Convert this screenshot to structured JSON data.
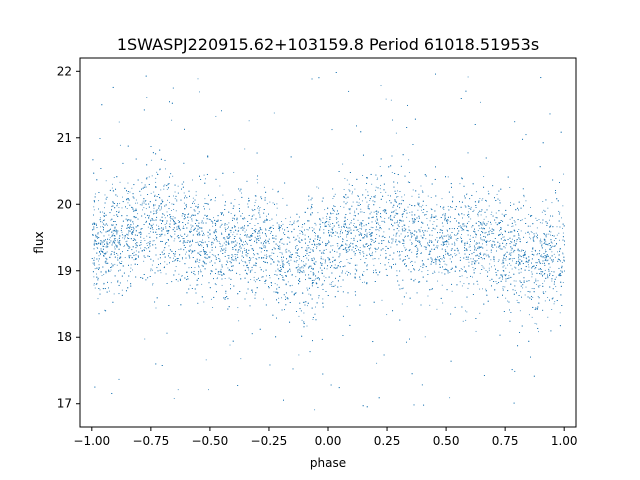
{
  "chart_data": {
    "type": "scatter",
    "title": "1SWASPJ220915.62+103159.8 Period 61018.51953s",
    "xlabel": "phase",
    "ylabel": "flux",
    "xlim": [
      -1.05,
      1.05
    ],
    "ylim": [
      16.65,
      22.2
    ],
    "xticks": [
      -1.0,
      -0.75,
      -0.5,
      -0.25,
      0.0,
      0.25,
      0.5,
      0.75,
      1.0
    ],
    "xtick_labels": [
      "−1.00",
      "−0.75",
      "−0.50",
      "−0.25",
      "0.00",
      "0.25",
      "0.50",
      "0.75",
      "1.00"
    ],
    "yticks": [
      17,
      18,
      19,
      20,
      21,
      22
    ],
    "ytick_labels": [
      "17",
      "18",
      "19",
      "20",
      "21",
      "22"
    ],
    "grid": false,
    "legend": "none",
    "marker_color": "#1f77b4",
    "series": [
      {
        "x": [
          -1.0,
          -0.95,
          -0.9,
          -0.85,
          -0.8,
          -0.75,
          -0.7,
          -0.65,
          -0.6,
          -0.55,
          -0.5,
          -0.45,
          -0.4,
          -0.35,
          -0.3,
          -0.25,
          -0.2,
          -0.15,
          -0.1,
          -0.05,
          0.0,
          0.05,
          0.1,
          0.15,
          0.2,
          0.25,
          0.3,
          0.35,
          0.4,
          0.45,
          0.5,
          0.55,
          0.6,
          0.65,
          0.7,
          0.75,
          0.8,
          0.85,
          0.9,
          0.95,
          1.0
        ],
        "y": [
          19.35,
          19.42,
          19.5,
          19.6,
          19.68,
          19.7,
          19.72,
          19.66,
          19.55,
          19.45,
          19.4,
          19.38,
          19.4,
          19.45,
          19.42,
          19.3,
          19.2,
          19.15,
          19.18,
          19.25,
          19.35,
          19.42,
          19.5,
          19.6,
          19.68,
          19.7,
          19.72,
          19.66,
          19.55,
          19.45,
          19.4,
          19.38,
          19.4,
          19.45,
          19.42,
          19.3,
          19.2,
          19.15,
          19.18,
          19.25,
          19.35
        ],
        "spread": [
          0.4,
          0.4,
          0.42,
          0.42,
          0.43,
          0.43,
          0.43,
          0.42,
          0.41,
          0.4,
          0.4,
          0.4,
          0.4,
          0.41,
          0.41,
          0.41,
          0.42,
          0.42,
          0.42,
          0.41,
          0.4,
          0.4,
          0.42,
          0.42,
          0.43,
          0.43,
          0.43,
          0.42,
          0.41,
          0.4,
          0.4,
          0.4,
          0.4,
          0.41,
          0.41,
          0.41,
          0.42,
          0.42,
          0.42,
          0.41,
          0.4
        ]
      }
    ]
  }
}
